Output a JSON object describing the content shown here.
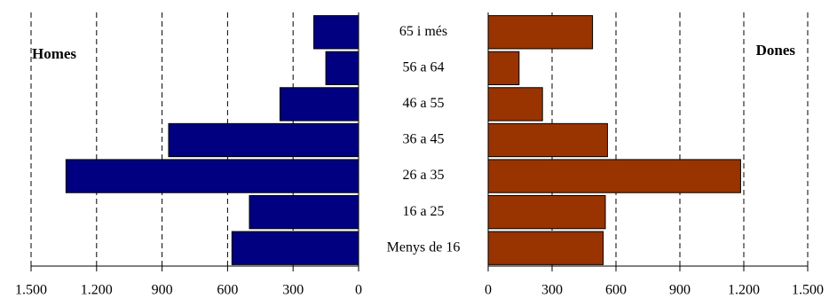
{
  "chart_data": [
    {
      "type": "bar",
      "orientation": "horizontal",
      "title": "Homes",
      "categories": [
        "65 i més",
        "56 a 64",
        "46 a 55",
        "36 a 45",
        "26 a 35",
        "16 a 25",
        "Menys de 16"
      ],
      "values": [
        205,
        150,
        360,
        870,
        1340,
        500,
        580
      ],
      "color": "#000080",
      "xlim": [
        1500,
        0
      ],
      "xticks": [
        {
          "value": 1500,
          "label": "1.500"
        },
        {
          "value": 1200,
          "label": "1.200"
        },
        900,
        600,
        300,
        0
      ],
      "grid": true
    },
    {
      "type": "bar",
      "orientation": "horizontal",
      "title": "Dones",
      "values": [
        490,
        145,
        255,
        560,
        1185,
        550,
        540
      ],
      "color": "#993300",
      "xlim": [
        0,
        1500
      ],
      "xticks": [
        0,
        300,
        600,
        900,
        {
          "value": 1200,
          "label": "1.200"
        },
        {
          "value": 1500,
          "label": "1.500"
        }
      ],
      "grid": true
    }
  ]
}
